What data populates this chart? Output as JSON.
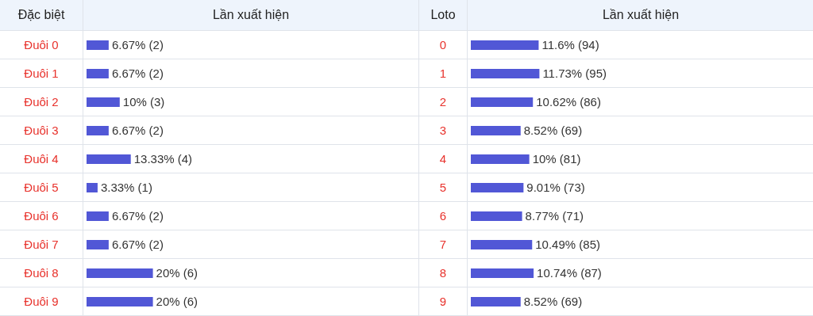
{
  "chart_data": [
    {
      "type": "bar",
      "orientation": "horizontal",
      "ylabel": "Đặc biệt",
      "xlabel": "Lần xuất hiện",
      "categories": [
        "Đuôi 0",
        "Đuôi 1",
        "Đuôi 2",
        "Đuôi 3",
        "Đuôi 4",
        "Đuôi 5",
        "Đuôi 6",
        "Đuôi 7",
        "Đuôi 8",
        "Đuôi 9"
      ],
      "color": "#5157d6",
      "values": [
        6.67,
        6.67,
        10,
        6.67,
        13.33,
        3.33,
        6.67,
        6.67,
        20,
        20
      ],
      "value_labels": [
        "6.67% (2)",
        "6.67% (2)",
        "10% (3)",
        "6.67% (2)",
        "13.33% (4)",
        "3.33% (1)",
        "6.67% (2)",
        "6.67% (2)",
        "20% (6)",
        "20% (6)"
      ]
    },
    {
      "type": "bar",
      "orientation": "horizontal",
      "ylabel": "Loto",
      "xlabel": "Lần xuất hiện",
      "categories": [
        "0",
        "1",
        "2",
        "3",
        "4",
        "5",
        "6",
        "7",
        "8",
        "9"
      ],
      "color": "#5157d6",
      "values": [
        11.6,
        11.73,
        10.62,
        8.52,
        10,
        9.01,
        8.77,
        10.49,
        10.74,
        8.52
      ],
      "value_labels": [
        "11.6% (94)",
        "11.73% (95)",
        "10.62% (86)",
        "8.52% (69)",
        "10% (81)",
        "9.01% (73)",
        "8.77% (71)",
        "10.49% (85)",
        "10.74% (87)",
        "8.52% (69)"
      ]
    }
  ]
}
